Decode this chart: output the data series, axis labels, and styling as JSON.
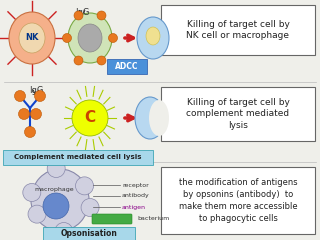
{
  "background_color": "#efefea",
  "sections": [
    {
      "label_box": "ADCC",
      "label_box_color": "#4a90d9",
      "label_box_text_color": "white",
      "description": "Killing of target cell by\nNK cell or macrophage",
      "desc_fontsize": 6.5
    },
    {
      "label_box": "Complement mediated cell lysis",
      "label_box_color": "#a8d8ea",
      "label_box_text_color": "#222222",
      "description": "Killing of target cell by\ncomplement mediated\nlysis",
      "desc_fontsize": 6.5
    },
    {
      "label_box": "Opsonisation",
      "label_box_color": "#a8d8ea",
      "label_box_text_color": "#222222",
      "description": "the modification of antigens\nby opsonins (antibody)  to\nmake them more accessible\nto phagocytic cells",
      "desc_fontsize": 6.0
    }
  ]
}
